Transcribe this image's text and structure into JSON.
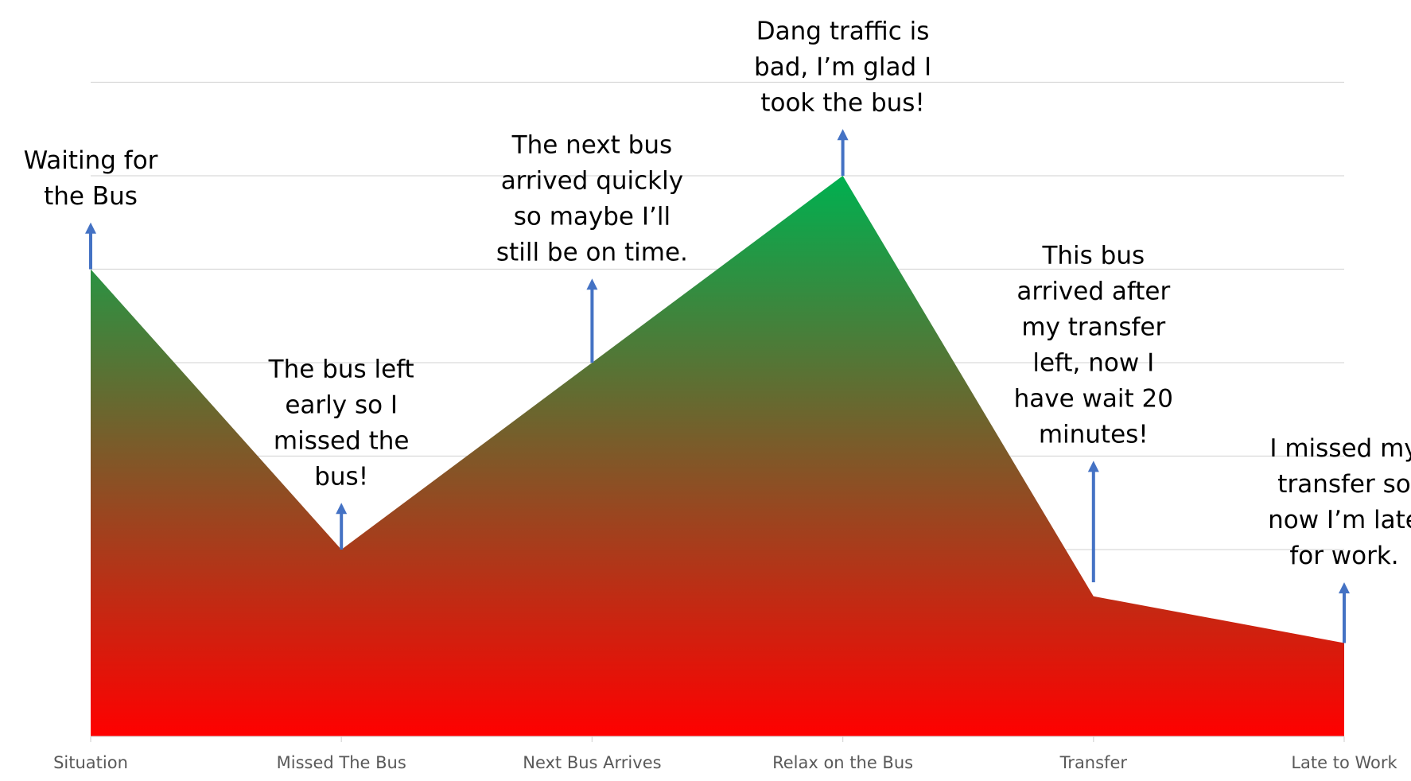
{
  "chart_data": {
    "type": "area",
    "title": "",
    "xlabel": "",
    "ylabel": "",
    "categories": [
      "Situation",
      "Missed The Bus",
      "Next Bus Arrives",
      "Relax on the Bus",
      "Transfer",
      "Late to Work"
    ],
    "values": [
      5,
      2,
      4,
      6,
      1.5,
      1
    ],
    "ylim": [
      0,
      7
    ],
    "y_gridlines": [
      1,
      2,
      3,
      4,
      5,
      6,
      7
    ],
    "y_tick_labels_shown": false,
    "grid": true,
    "legend": "none",
    "fill_gradient": {
      "top": "#00b050",
      "bottom": "#ff0000"
    },
    "annotation_arrow_color": "#4472c4",
    "annotations": [
      {
        "category": "Situation",
        "lines": [
          "Waiting for",
          "the Bus"
        ],
        "arrow_from": 5,
        "arrow_to": 5.5
      },
      {
        "category": "Missed The Bus",
        "lines": [
          "The bus left",
          "early so I",
          "missed the",
          "bus!"
        ],
        "arrow_from": 2,
        "arrow_to": 2.5
      },
      {
        "category": "Next Bus Arrives",
        "lines": [
          "The next bus",
          "arrived quickly",
          "so maybe I’ll",
          "still be on time."
        ],
        "arrow_from": 4,
        "arrow_to": 4.9
      },
      {
        "category": "Relax on the Bus",
        "lines": [
          "Dang traffic is",
          "bad, I’m glad I",
          "took the bus!"
        ],
        "arrow_from": 6,
        "arrow_to": 6.5
      },
      {
        "category": "Transfer",
        "lines": [
          "This bus",
          "arrived after",
          "my transfer",
          "left, now I",
          "have wait 20",
          "minutes!"
        ],
        "arrow_from": 1.65,
        "arrow_to": 2.95
      },
      {
        "category": "Late to Work",
        "lines": [
          "I missed my",
          "transfer so",
          "now I’m late",
          "for work."
        ],
        "arrow_from": 1,
        "arrow_to": 1.65
      }
    ]
  }
}
